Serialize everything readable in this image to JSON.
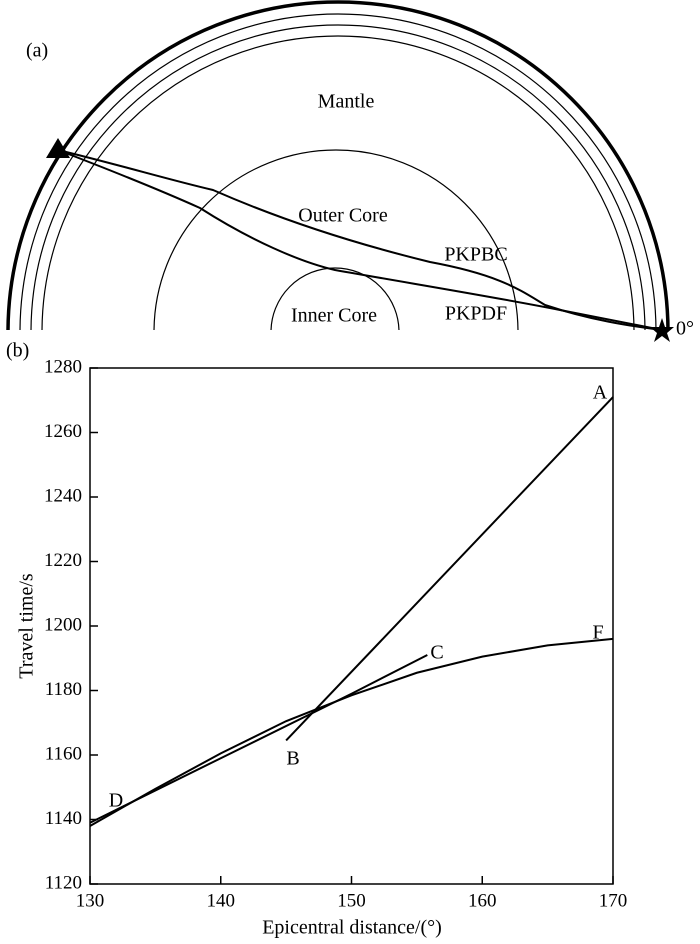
{
  "diagram": {
    "panel_label": "(a)",
    "mantle": "Mantle",
    "outer_core": "Outer Core",
    "inner_core": "Inner Core",
    "pkpbc": "PKPBC",
    "pkpdf": "PKPDF",
    "zero": "0°"
  },
  "chart_data": {
    "type": "line",
    "panel_label": "(b)",
    "xlabel": "Epicentral distance/(°)",
    "ylabel": "Travel time/s",
    "xlim": [
      130,
      170
    ],
    "xticks": [
      130,
      140,
      150,
      160,
      170
    ],
    "ylim": [
      1120,
      1280
    ],
    "yticks": [
      1120,
      1140,
      1160,
      1180,
      1200,
      1220,
      1240,
      1260,
      1280
    ],
    "series": [
      {
        "color": "#000000",
        "x": [
          145,
          170
        ],
        "values": [
          1164.5,
          1271
        ]
      },
      {
        "color": "#000000",
        "x": [
          130,
          140,
          150,
          155.8
        ],
        "values": [
          1139,
          1159,
          1179,
          1191
        ]
      },
      {
        "color": "#000000",
        "x": [
          130,
          135,
          140,
          145,
          150,
          155,
          160,
          165,
          170
        ],
        "values": [
          1138,
          1149.5,
          1160.5,
          1170.5,
          1178.5,
          1185.5,
          1190.5,
          1194,
          1196
        ]
      }
    ],
    "annotations": [
      "A",
      "B",
      "C",
      "D",
      "F"
    ]
  }
}
